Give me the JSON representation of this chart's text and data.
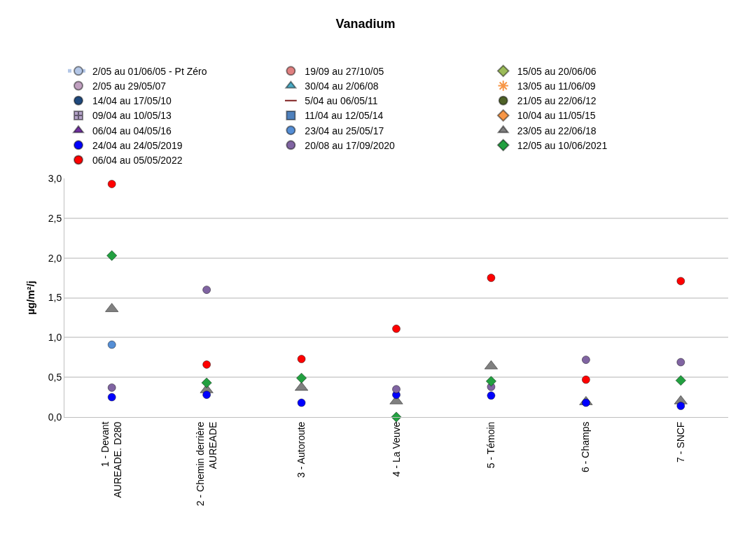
{
  "chart_data": {
    "type": "scatter",
    "title": "Vanadium",
    "ylabel": "µg/m²/j",
    "categories": [
      "1 - Devant\nAUREADE. D280",
      "2 - Chemin derrière\nAUREADE",
      "3 - Autoroute",
      "4 - La Veuve",
      "5 - Témoin",
      "6 - Champs",
      "7 - SNCF"
    ],
    "ylim": [
      0,
      3
    ],
    "yticks": [
      {
        "value": 0,
        "label": "0,0"
      },
      {
        "value": 0.5,
        "label": "0,5"
      },
      {
        "value": 1,
        "label": "1,0"
      },
      {
        "value": 1.5,
        "label": "1,5"
      },
      {
        "value": 2,
        "label": "2,0"
      },
      {
        "value": 2.5,
        "label": "2,5"
      },
      {
        "value": 3,
        "label": "3,0"
      }
    ],
    "grid": "y",
    "legend": "top",
    "series": [
      {
        "name": "2/05 au 01/06/05 - Pt Zéro",
        "type": "line",
        "line_style": "dotted",
        "marker": "circle",
        "color": "#b4c7e7",
        "values": [
          null,
          null,
          null,
          null,
          null,
          null,
          null
        ]
      },
      {
        "name": "19/09 au 27/10/05",
        "marker": "circle",
        "color": "#e08080",
        "values": [
          null,
          null,
          null,
          null,
          null,
          null,
          null
        ]
      },
      {
        "name": "15/05 au 20/06/06",
        "marker": "diamond",
        "color": "#9bbb59",
        "values": [
          null,
          null,
          null,
          null,
          null,
          null,
          null
        ]
      },
      {
        "name": "2/05 au 29/05/07",
        "marker": "circle",
        "color": "#c0a0c0",
        "values": [
          null,
          null,
          null,
          null,
          null,
          null,
          null
        ]
      },
      {
        "name": "30/04 au 2/06/08",
        "marker": "triangle",
        "color": "#4bacc6",
        "values": [
          null,
          null,
          null,
          null,
          null,
          null,
          null
        ]
      },
      {
        "name": "13/05 au 11/06/09",
        "marker": "star",
        "color": "#f79646",
        "values": [
          null,
          null,
          null,
          null,
          null,
          null,
          null
        ]
      },
      {
        "name": "14/04 au 17/05/10",
        "marker": "circle",
        "color": "#1f497d",
        "values": [
          null,
          null,
          null,
          null,
          null,
          null,
          null
        ]
      },
      {
        "name": "5/04 au 06/05/11",
        "marker": "dash",
        "color": "#7f1f1f",
        "values": [
          null,
          null,
          null,
          null,
          null,
          null,
          null
        ]
      },
      {
        "name": "21/05 au 22/06/12",
        "marker": "circle",
        "color": "#4f6228",
        "values": [
          null,
          null,
          null,
          null,
          null,
          null,
          null
        ]
      },
      {
        "name": "09/04 au 10/05/13",
        "marker": "cross",
        "color": "#b3a2c7",
        "values": [
          null,
          null,
          null,
          null,
          null,
          null,
          null
        ]
      },
      {
        "name": "11/04 au 12/05/14",
        "marker": "square",
        "color": "#4f81bd",
        "values": [
          null,
          null,
          null,
          null,
          null,
          null,
          null
        ]
      },
      {
        "name": "10/04 au 11/05/15",
        "marker": "diamond",
        "color": "#f79646",
        "values": [
          null,
          null,
          null,
          null,
          null,
          null,
          null
        ]
      },
      {
        "name": "06/04 au 04/05/16",
        "marker": "triangle",
        "color": "#7030a0",
        "values": [
          null,
          null,
          null,
          null,
          null,
          null,
          null
        ]
      },
      {
        "name": "23/04 au 25/05/17",
        "marker": "circle",
        "color": "#558ed5",
        "values": [
          0.91,
          null,
          null,
          null,
          null,
          null,
          null
        ]
      },
      {
        "name": "23/05 au 22/06/18",
        "marker": "triangle",
        "color": "#808080",
        "values": [
          1.36,
          0.34,
          0.37,
          0.2,
          0.64,
          0.19,
          0.2
        ]
      },
      {
        "name": "24/04 au 24/05/2019",
        "marker": "circle",
        "color": "#0000ff",
        "values": [
          0.25,
          0.28,
          0.18,
          0.28,
          0.27,
          0.18,
          0.14
        ]
      },
      {
        "name": "20/08 au 17/09/2020",
        "marker": "circle",
        "color": "#8064a2",
        "values": [
          0.37,
          1.6,
          null,
          0.35,
          0.38,
          0.72,
          0.69
        ]
      },
      {
        "name": "12/05 au 10/06/2021",
        "marker": "diamond",
        "color": "#22a040",
        "values": [
          2.03,
          0.43,
          0.49,
          0.0,
          0.45,
          null,
          0.46
        ]
      },
      {
        "name": "06/04 au 05/05/2022",
        "marker": "circle",
        "color": "#ff0000",
        "values": [
          2.93,
          0.66,
          0.73,
          1.11,
          1.75,
          0.47,
          1.71
        ]
      }
    ]
  }
}
